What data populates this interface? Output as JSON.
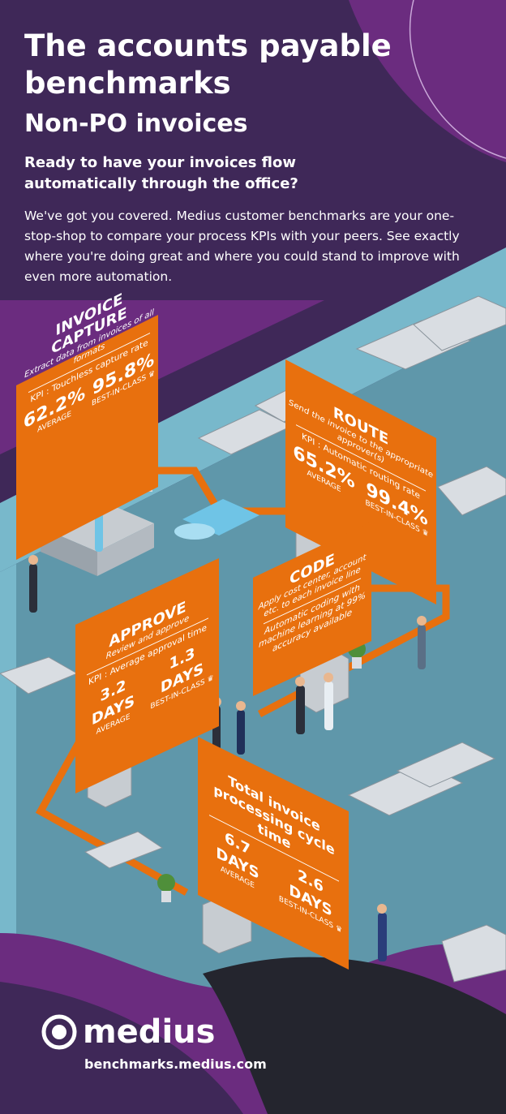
{
  "header": {
    "title": "The accounts payable benchmarks",
    "subtitle": "Non-PO invoices",
    "question": "Ready to have your invoices flow automatically through the office?",
    "paragraph": "We've got you covered. Medius customer benchmarks are your one-stop-shop to compare your process KPIs with your peers. See exactly where you're doing great and where you could stand to improve with even more automation."
  },
  "cards": {
    "capture": {
      "title": "INVOICE CAPTURE",
      "desc": "Extract data from invoices of all formats",
      "kpi": "KPI : Touchless capture rate",
      "average_value": "62.2%",
      "average_label": "AVERAGE",
      "best_value": "95.8%",
      "best_label": "BEST-IN-CLASS"
    },
    "route": {
      "title": "ROUTE",
      "desc": "Send the invoice to the appropriate approver(s)",
      "kpi": "KPI : Automatic routing rate",
      "average_value": "65.2%",
      "average_label": "AVERAGE",
      "best_value": "99.4%",
      "best_label": "BEST-IN-CLASS"
    },
    "code": {
      "title": "CODE",
      "desc": "Apply cost center, account etc. to each invoice line",
      "note": "Automatic coding with machine learning at 99% accuracy available"
    },
    "approve": {
      "title": "APPROVE",
      "desc": "Review and approve",
      "kpi": "KPI : Average approval time",
      "average_value": "3.2 DAYS",
      "average_label": "AVERAGE",
      "best_value": "1.3 DAYS",
      "best_label": "BEST-IN-CLASS"
    },
    "total": {
      "title": "Total invoice processing cycle time",
      "average_value": "6.7 DAYS",
      "average_label": "AVERAGE",
      "best_value": "2.6 DAYS",
      "best_label": "BEST-IN-CLASS"
    }
  },
  "footer": {
    "brand": "medius",
    "url": "benchmarks.medius.com"
  },
  "colors": {
    "header_bg": "#3f2858",
    "accent_purple": "#6b2c7f",
    "floor": "#5f97aa",
    "wall": "#78b8cb",
    "orange": "#e8700e",
    "dark": "#24252e"
  },
  "icons": [
    "trophy-icon",
    "medius-logo-icon"
  ]
}
